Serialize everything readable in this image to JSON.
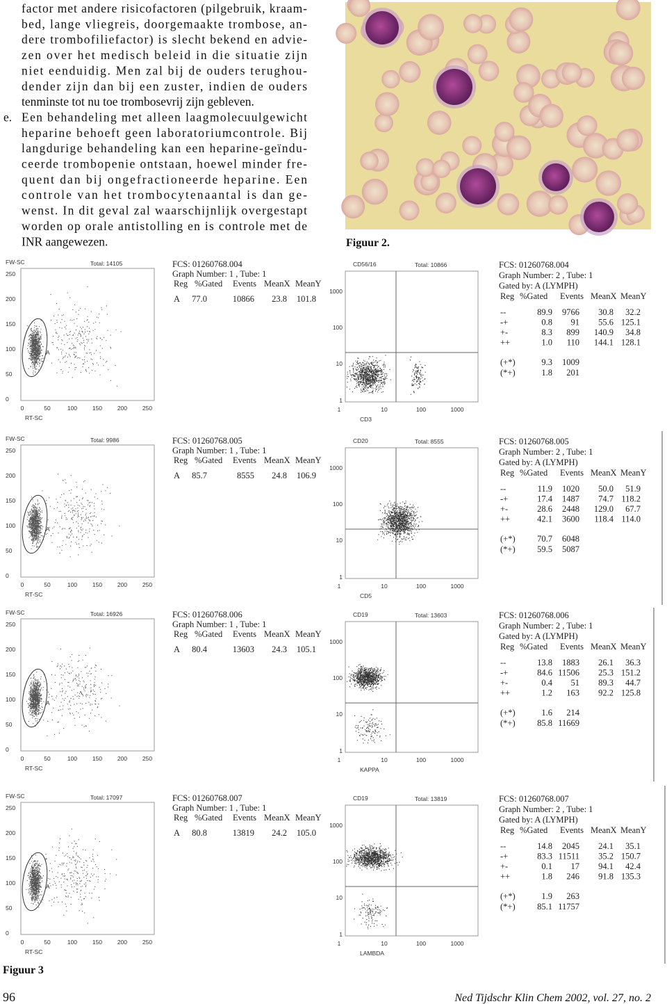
{
  "text": {
    "lines": [
      "factor met andere risicofactoren (pilgebruik, kraam-",
      "bed, lange vliegreis, doorgemaakte trombose, an-",
      "dere trombofiliefactor) is slecht bekend en advie-",
      "zen over het medisch beleid in die situatie zijn",
      "niet eenduidig. Men zal bij de ouders terughou-",
      "dender zijn dan bij een zuster, indien de ouders",
      "tenminste tot nu toe trombosevrij zijn gebleven."
    ],
    "item_label": "e.",
    "item_lines": [
      "Een behandeling met alleen laagmolecuulgewicht",
      "heparine behoeft geen laboratoriumcontrole. Bij",
      "langdurige behandeling kan een heparine-geïndu-",
      "ceerde trombopenie ontstaan, hoewel minder fre-",
      "quent dan bij ongefractioneerde heparine. Een",
      "controle van het trombocytenaantal is dan ge-",
      "wenst. In dit geval zal waarschijnlijk overgestapt",
      "worden op orale antistolling en is controle met de",
      "INR aangewezen."
    ]
  },
  "figure2": {
    "caption": "Figuur 2."
  },
  "figure3": {
    "caption": "Figuur 3",
    "rows": [
      {
        "scatter": {
          "y_label": "FW-SC",
          "total": "Total: 14105",
          "yticks": [
            "250",
            "200",
            "150",
            "100",
            "50",
            "0"
          ],
          "xticks": [
            "0",
            "50",
            "100",
            "150",
            "200",
            "250"
          ],
          "x_label": "RT-SC",
          "gate": "A"
        },
        "stats1": {
          "file": "FCS: 01260768.004",
          "graph": "Graph Number:  1 , Tube: 1",
          "header": [
            "Reg",
            "%Gated",
            "Events",
            "MeanX",
            "MeanY"
          ],
          "row": [
            "A",
            "77.0",
            "10866",
            "23.8",
            "101.8"
          ]
        },
        "quadrant": {
          "y_label": "CD56/16",
          "total": "Total: 10866",
          "yticks": [
            "1000",
            "100",
            "10",
            "1"
          ],
          "xticks": [
            "1",
            "10",
            "100",
            "1000"
          ],
          "x_label": "CD3"
        },
        "stats2": {
          "file": "FCS: 01260768.004",
          "graph": "Graph Number:  2 , Tube: 1",
          "gated_by": "Gated by:  A (LYMPH)",
          "header": [
            "Reg",
            "%Gated",
            "Events",
            "MeanX",
            "MeanY"
          ],
          "rows": [
            [
              "--",
              "89.9",
              "9766",
              "30.8",
              "32.2"
            ],
            [
              "-+",
              "0.8",
              "91",
              "55.6",
              "125.1"
            ],
            [
              "+-",
              "8.3",
              "899",
              "140.9",
              "34.8"
            ],
            [
              "++",
              "1.0",
              "110",
              "144.1",
              "128.1"
            ]
          ],
          "extra": [
            [
              "(+*)",
              "9.3",
              "1009"
            ],
            [
              "(*+)",
              "1.8",
              "201"
            ]
          ]
        }
      },
      {
        "scatter": {
          "y_label": "FW-SC",
          "total": "Total: 9986",
          "yticks": [
            "250",
            "200",
            "150",
            "100",
            "50",
            "0"
          ],
          "xticks": [
            "0",
            "50",
            "100",
            "150",
            "200",
            "250"
          ],
          "x_label": "RT-SC",
          "gate": "A"
        },
        "stats1": {
          "file": "FCS: 01260768.005",
          "graph": "Graph Number:  1 , Tube: 1",
          "header": [
            "Reg",
            "%Gated",
            "Events",
            "MeanX",
            "MeanY"
          ],
          "row": [
            "A",
            "85.7",
            "8555",
            "24.8",
            "106.9"
          ]
        },
        "quadrant": {
          "y_label": "CD20",
          "total": "Total: 8555",
          "yticks": [
            "1000",
            "100",
            "10",
            "1"
          ],
          "xticks": [
            "1",
            "10",
            "100",
            "1000"
          ],
          "x_label": "CD5"
        },
        "stats2": {
          "file": "FCS: 01260768.005",
          "graph": "Graph Number:  2 , Tube: 1",
          "gated_by": "Gated by:  A (LYMPH)",
          "header": [
            "Reg",
            "%Gated",
            "Events",
            "MeanX",
            "MeanY"
          ],
          "rows": [
            [
              "--",
              "11.9",
              "1020",
              "50.0",
              "51.9"
            ],
            [
              "-+",
              "17.4",
              "1487",
              "74.7",
              "118.2"
            ],
            [
              "+-",
              "28.6",
              "2448",
              "129.0",
              "67.7"
            ],
            [
              "++",
              "42.1",
              "3600",
              "118.4",
              "114.0"
            ]
          ],
          "extra": [
            [
              "(+*)",
              "70.7",
              "6048"
            ],
            [
              "(*+)",
              "59.5",
              "5087"
            ]
          ]
        }
      },
      {
        "scatter": {
          "y_label": "FW-SC",
          "total": "Total: 16926",
          "yticks": [
            "250",
            "200",
            "150",
            "100",
            "50",
            "0"
          ],
          "xticks": [
            "0",
            "50",
            "100",
            "150",
            "200",
            "250"
          ],
          "x_label": "RT-SC",
          "gate": "A"
        },
        "stats1": {
          "file": "FCS: 01260768.006",
          "graph": "Graph Number:  1 , Tube: 1",
          "header": [
            "Reg",
            "%Gated",
            "Events",
            "MeanX",
            "MeanY"
          ],
          "row": [
            "A",
            "80.4",
            "13603",
            "24.3",
            "105.1"
          ]
        },
        "quadrant": {
          "y_label": "CD19",
          "total": "Total: 13603",
          "yticks": [
            "1000",
            "100",
            "10",
            "1"
          ],
          "xticks": [
            "1",
            "10",
            "100",
            "1000"
          ],
          "x_label": "KAPPA"
        },
        "stats2": {
          "file": "FCS: 01260768.006",
          "graph": "Graph Number:  2 , Tube: 1",
          "gated_by": "Gated by:  A (LYMPH)",
          "header": [
            "Reg",
            "%Gated",
            "Events",
            "MeanX",
            "MeanY"
          ],
          "rows": [
            [
              "--",
              "13.8",
              "1883",
              "26.1",
              "36.3"
            ],
            [
              "-+",
              "84.6",
              "11506",
              "25.3",
              "151.2"
            ],
            [
              "+-",
              "0.4",
              "51",
              "89.3",
              "44.7"
            ],
            [
              "++",
              "1.2",
              "163",
              "92.2",
              "125.8"
            ]
          ],
          "extra": [
            [
              "(+*)",
              "1.6",
              "214"
            ],
            [
              "(*+)",
              "85.8",
              "11669"
            ]
          ]
        }
      },
      {
        "scatter": {
          "y_label": "FW-SC",
          "total": "Total: 17097",
          "yticks": [
            "250",
            "200",
            "150",
            "100",
            "50",
            "0"
          ],
          "xticks": [
            "0",
            "50",
            "100",
            "150",
            "200",
            "250"
          ],
          "x_label": "RT-SC",
          "gate": "A"
        },
        "stats1": {
          "file": "FCS: 01260768.007",
          "graph": "Graph Number:  1 , Tube: 1",
          "header": [
            "Reg",
            "%Gated",
            "Events",
            "MeanX",
            "MeanY"
          ],
          "row": [
            "A",
            "80.8",
            "13819",
            "24.2",
            "105.0"
          ]
        },
        "quadrant": {
          "y_label": "CD19",
          "total": "Total: 13819",
          "yticks": [
            "1000",
            "100",
            "10",
            "1"
          ],
          "xticks": [
            "1",
            "10",
            "100",
            "1000"
          ],
          "x_label": "LAMBDA"
        },
        "stats2": {
          "file": "FCS: 01260768.007",
          "graph": "Graph Number:  2 , Tube: 1",
          "gated_by": "Gated by:  A (LYMPH)",
          "header": [
            "Reg",
            "%Gated",
            "Events",
            "MeanX",
            "MeanY"
          ],
          "rows": [
            [
              "--",
              "14.8",
              "2045",
              "24.1",
              "35.1"
            ],
            [
              "-+",
              "83.3",
              "11511",
              "35.2",
              "150.7"
            ],
            [
              "+-",
              "0.1",
              "17",
              "94.1",
              "42.4"
            ],
            [
              "++",
              "1.8",
              "246",
              "91.8",
              "135.3"
            ]
          ],
          "extra": [
            [
              "(+*)",
              "1.9",
              "263"
            ],
            [
              "(*+)",
              "85.1",
              "11757"
            ]
          ]
        }
      }
    ]
  },
  "footer": {
    "page": "96",
    "journal": "Ned Tijdschr Klin Chem 2002, vol. 27, no. 2"
  }
}
